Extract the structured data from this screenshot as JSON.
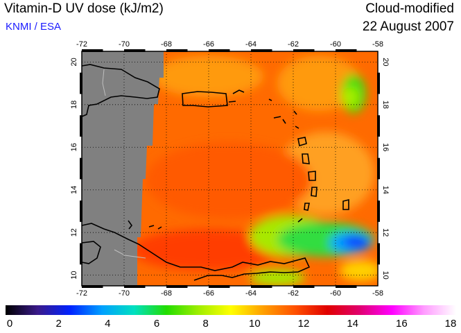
{
  "header": {
    "title": "Vitamin-D UV dose (kJ/m2)",
    "credit": "KNMI / ESA",
    "mode": "Cloud-modified",
    "date": "22 August 2007"
  },
  "map": {
    "lon_ticks": [
      "-72",
      "-70",
      "-68",
      "-66",
      "-64",
      "-62",
      "-60",
      "-58"
    ],
    "lat_ticks": [
      "10",
      "12",
      "14",
      "16",
      "18",
      "20"
    ],
    "no_data_color": "#808080",
    "land_outline_color": "#000000",
    "border_color": "#bfbfbf",
    "gridline_style": "dotted"
  },
  "colorbar": {
    "labels": [
      "0",
      "2",
      "4",
      "6",
      "8",
      "10",
      "12",
      "14",
      "16",
      "18"
    ],
    "stops": [
      "#000000",
      "#3a1a8a",
      "#0022ff",
      "#00a0ff",
      "#00e0c0",
      "#22dd00",
      "#a0ee00",
      "#ffff00",
      "#ffa000",
      "#ff5000",
      "#e00000",
      "#e0006e",
      "#ff00ff",
      "#ff9cff",
      "#ffffff"
    ]
  }
}
